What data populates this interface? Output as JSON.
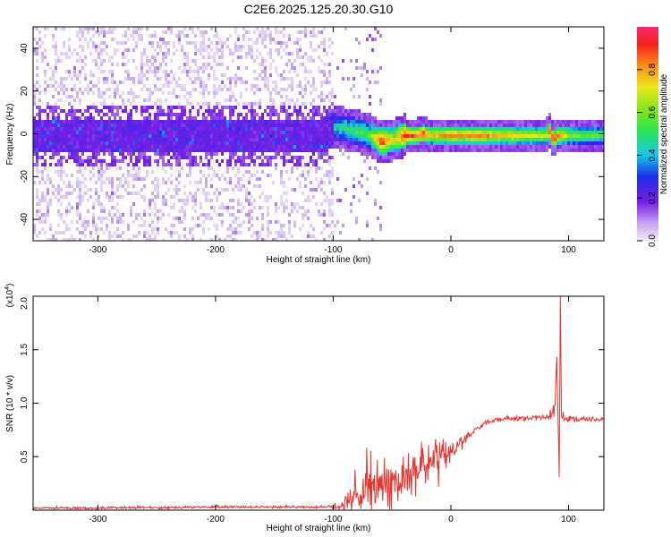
{
  "figure_title": "C2E6.2025.125.20.30.G10",
  "chart_data": [
    {
      "type": "heatmap",
      "xlabel": "Height of straight line (km)",
      "ylabel": "Frequency (Hz)",
      "xlim": [
        -355,
        130
      ],
      "ylim": [
        -50,
        50
      ],
      "xticks": [
        -300,
        -200,
        -100,
        0,
        100
      ],
      "yticks": [
        -40,
        -20,
        0,
        20,
        40
      ],
      "grid": false,
      "colorbar": {
        "label": "Normalized spectral amplitude",
        "range": [
          0,
          1
        ],
        "ticks": [
          0.0,
          0.2,
          0.4,
          0.6,
          0.8
        ],
        "tick_labels": [
          "0.0",
          "0.2",
          "0.4",
          "0.6",
          "0.8"
        ],
        "colormap": "rainbow (white-lavender-violet-blue-cyan-green-yellow-orange-red)"
      },
      "ridge": {
        "x": [
          -355,
          -300,
          -200,
          -110,
          -100,
          -90,
          -80,
          -70,
          -60,
          -50,
          -40,
          -30,
          -25,
          -20,
          -10,
          0,
          20,
          40,
          60,
          80,
          83,
          86,
          90,
          100,
          130
        ],
        "y": [
          0,
          0,
          0,
          0,
          4,
          3,
          2,
          0,
          -3,
          -2,
          0,
          0,
          1,
          0,
          0,
          0,
          0,
          0,
          0,
          0,
          2,
          -2,
          0,
          0,
          0
        ],
        "amplitude": [
          0.2,
          0.2,
          0.2,
          0.25,
          0.45,
          0.5,
          0.55,
          0.6,
          0.95,
          0.7,
          0.95,
          0.85,
          0.95,
          0.8,
          0.8,
          0.85,
          0.85,
          0.8,
          0.75,
          0.7,
          0.95,
          0.95,
          0.85,
          0.65,
          0.55
        ]
      },
      "notes": "Broad low-amplitude scatter across -50..50 Hz for x < -100 km; concentrated ridge near 0 Hz for x > -100 km."
    },
    {
      "type": "line",
      "xlabel": "Height of straight line (km)",
      "ylabel": "SNR (10 * v/v)",
      "y_multiplier": "(x10",
      "y_multiplier_exp": "4",
      "xlim": [
        -355,
        130
      ],
      "ylim": [
        0,
        2.0
      ],
      "xticks": [
        -300,
        -200,
        -100,
        0,
        100
      ],
      "yticks": [
        0.5,
        1.0,
        1.5,
        2.0
      ],
      "ytick_labels": [
        "0.5",
        "1.0",
        "1.5",
        "2.0"
      ],
      "grid": false,
      "series": [
        {
          "color": "#e8332e",
          "x": [
            -355,
            -300,
            -200,
            -150,
            -110,
            -100,
            -90,
            -80,
            -70,
            -60,
            -50,
            -40,
            -30,
            -20,
            -10,
            0,
            10,
            20,
            30,
            40,
            60,
            80,
            88,
            90,
            92,
            93,
            94,
            96,
            100,
            110,
            130
          ],
          "y": [
            0.02,
            0.02,
            0.03,
            0.03,
            0.03,
            0.03,
            0.05,
            0.1,
            0.15,
            0.2,
            0.25,
            0.3,
            0.38,
            0.45,
            0.5,
            0.55,
            0.65,
            0.75,
            0.82,
            0.85,
            0.86,
            0.87,
            0.9,
            1.4,
            0.3,
            2.0,
            0.9,
            0.85,
            0.86,
            0.85,
            0.85
          ],
          "noise": [
            0.01,
            0.01,
            0.01,
            0.01,
            0.01,
            0.02,
            0.06,
            0.12,
            0.15,
            0.15,
            0.15,
            0.15,
            0.15,
            0.15,
            0.12,
            0.08,
            0.05,
            0.03,
            0.02,
            0.02,
            0.02,
            0.02,
            0.1,
            0.05,
            0.05,
            0.0,
            0.05,
            0.05,
            0.03,
            0.02,
            0.02
          ]
        }
      ]
    }
  ]
}
